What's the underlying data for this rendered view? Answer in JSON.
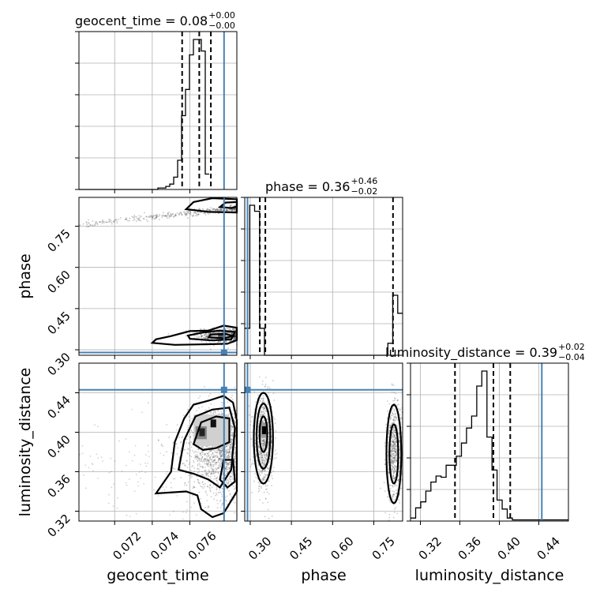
{
  "chart_data": {
    "type": "corner",
    "parameters": [
      {
        "key": "geocent_time",
        "label": "geocent_time",
        "range": [
          0.0701,
          0.0785
        ],
        "ticks": [
          0.072,
          0.074,
          0.076
        ],
        "tick_labels": [
          "0.072",
          "0.074",
          "0.076"
        ],
        "median": "0.08",
        "plus": "+0.00",
        "minus": "−0.00",
        "quantiles": [
          0.07559,
          0.0765,
          0.07712
        ],
        "truth": 0.07782
      },
      {
        "key": "phase",
        "label": "phase",
        "range": [
          0.28,
          0.855
        ],
        "ticks": [
          0.3,
          0.45,
          0.6,
          0.75
        ],
        "tick_labels": [
          "0.30",
          "0.45",
          "0.60",
          "0.75"
        ],
        "median": "0.36",
        "plus": "+0.46",
        "minus": "−0.02",
        "quantiles": [
          0.335,
          0.355,
          0.82
        ],
        "truth": 0.29
      },
      {
        "key": "luminosity_distance",
        "label": "luminosity_distance",
        "range": [
          0.31,
          0.47
        ],
        "ticks": [
          0.32,
          0.36,
          0.4,
          0.44
        ],
        "tick_labels": [
          "0.32",
          "0.36",
          "0.40",
          "0.44"
        ],
        "median": "0.39",
        "plus": "+0.02",
        "minus": "−0.04",
        "quantiles": [
          0.355,
          0.394,
          0.411
        ],
        "truth": 0.443
      }
    ],
    "histograms": [
      {
        "param": 0,
        "bin_start": 0.0701,
        "bin_width": 0.00021,
        "counts": [
          0,
          0,
          0,
          0,
          0,
          0,
          0,
          0,
          0,
          0,
          0,
          0,
          0,
          0,
          0,
          0,
          0,
          0,
          0,
          0,
          2,
          2,
          4,
          7,
          16,
          38,
          96,
          130,
          175,
          195,
          195,
          180,
          20
        ]
      },
      {
        "param": 1,
        "bin_start": 0.28,
        "bin_width": 0.01797,
        "counts": [
          45,
          250,
          240,
          45,
          0,
          0,
          0,
          0,
          0,
          0,
          0,
          0,
          0,
          0,
          0,
          0,
          0,
          0,
          0,
          0,
          0,
          0,
          0,
          0,
          0,
          0,
          0,
          0,
          0,
          20,
          100,
          70
        ]
      },
      {
        "param": 2,
        "bin_start": 0.31,
        "bin_width": 0.00516,
        "counts": [
          5,
          22,
          32,
          50,
          65,
          75,
          73,
          93,
          93,
          108,
          130,
          155,
          175,
          225,
          250,
          140,
          85,
          35,
          20,
          5,
          2,
          2,
          2,
          2,
          2,
          2,
          2,
          2,
          2,
          2,
          2
        ]
      }
    ],
    "grid": true
  }
}
